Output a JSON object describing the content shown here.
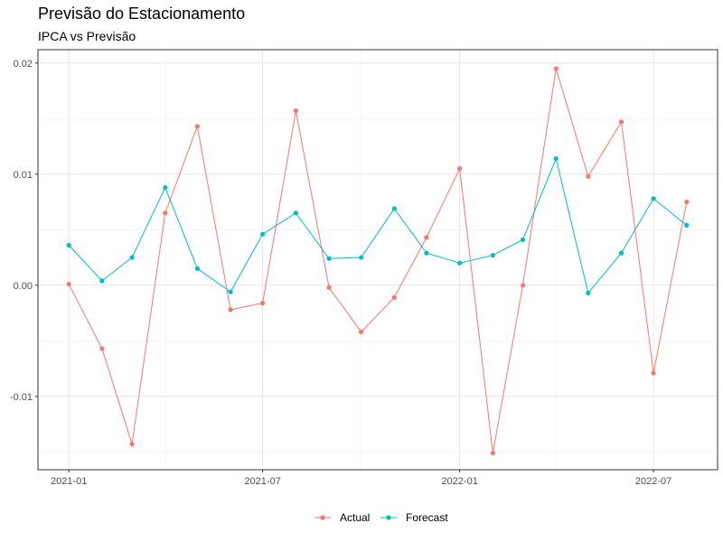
{
  "chart_data": {
    "type": "line",
    "title": "Previsão do Estacionamento",
    "subtitle": "IPCA vs Previsão",
    "xlabel": "",
    "ylabel": "",
    "x": [
      "2021-01-01",
      "2021-02-01",
      "2021-03-01",
      "2021-04-01",
      "2021-05-01",
      "2021-06-01",
      "2021-07-01",
      "2021-08-01",
      "2021-09-01",
      "2021-10-01",
      "2021-11-01",
      "2021-12-01",
      "2022-01-01",
      "2022-02-01",
      "2022-03-01",
      "2022-04-01",
      "2022-05-01",
      "2022-06-01",
      "2022-07-01",
      "2022-08-01"
    ],
    "x_ticks": [
      "2021-01",
      "2021-07",
      "2022-01",
      "2022-07"
    ],
    "y_ticks": [
      "-0.01",
      "0.00",
      "0.01",
      "0.02"
    ],
    "ylim": [
      -0.0166,
      0.0212
    ],
    "grid": true,
    "legend_position": "bottom",
    "series": [
      {
        "name": "Actual",
        "color": "#F8766D",
        "values": [
          0.0001,
          -0.0057,
          -0.0143,
          0.0065,
          0.0143,
          -0.0022,
          -0.0016,
          0.0157,
          -0.0002,
          -0.0042,
          -0.0011,
          0.0043,
          0.0105,
          -0.0151,
          0.0,
          0.0195,
          0.0098,
          0.0147,
          -0.0079,
          0.0075
        ]
      },
      {
        "name": "Forecast",
        "color": "#00BFC4",
        "values": [
          0.0036,
          0.0004,
          0.0025,
          0.0088,
          0.0015,
          -0.0006,
          0.0046,
          0.0065,
          0.0024,
          0.0025,
          0.0069,
          0.0029,
          0.002,
          0.0027,
          0.0041,
          0.0114,
          -0.0007,
          0.0029,
          0.0078,
          0.0054
        ]
      }
    ]
  }
}
